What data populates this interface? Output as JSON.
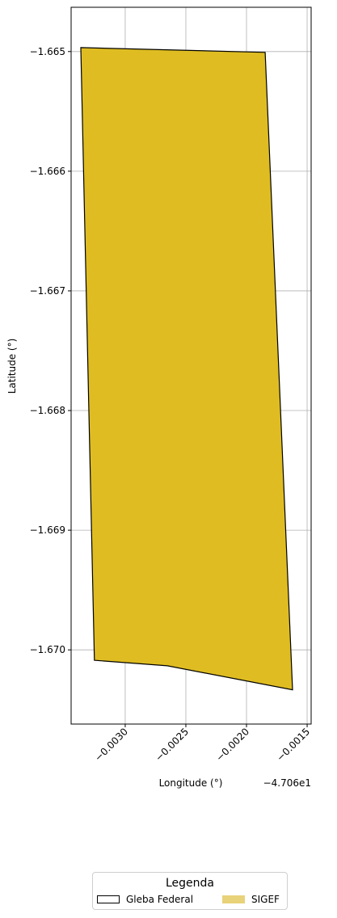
{
  "chart_data": {
    "type": "map",
    "xlabel": "Longitude (°)",
    "ylabel": "Latitude (°)",
    "offset_label": "−4.706e1",
    "x_ticks": [
      -0.003,
      -0.0025,
      -0.002,
      -0.0015
    ],
    "x_tick_labels": [
      "−0.0030",
      "−0.0025",
      "−0.0020",
      "−0.0015"
    ],
    "y_ticks": [
      -1.665,
      -1.666,
      -1.667,
      -1.668,
      -1.669,
      -1.67
    ],
    "y_tick_labels": [
      "−1.665",
      "−1.666",
      "−1.667",
      "−1.668",
      "−1.669",
      "−1.670"
    ],
    "xlim": [
      -0.003446,
      -0.001467
    ],
    "ylim": [
      -1.67062,
      -1.66463
    ],
    "grid": true,
    "polygons": [
      {
        "name": "SIGEF",
        "fill": "#dfbd22",
        "stroke": "#000000",
        "points": [
          [
            -0.003366,
            -1.664967
          ],
          [
            -0.001846,
            -1.665007
          ],
          [
            -0.00162,
            -1.670334
          ],
          [
            -0.002653,
            -1.670133
          ],
          [
            -0.003254,
            -1.670087
          ]
        ]
      }
    ],
    "legend": {
      "title": "Legenda",
      "placement": "bottom-center",
      "entries": [
        {
          "label": "Gleba Federal",
          "style": "outline",
          "color": "#000000"
        },
        {
          "label": "SIGEF",
          "style": "fill",
          "color": "#e8d27a"
        }
      ]
    }
  }
}
